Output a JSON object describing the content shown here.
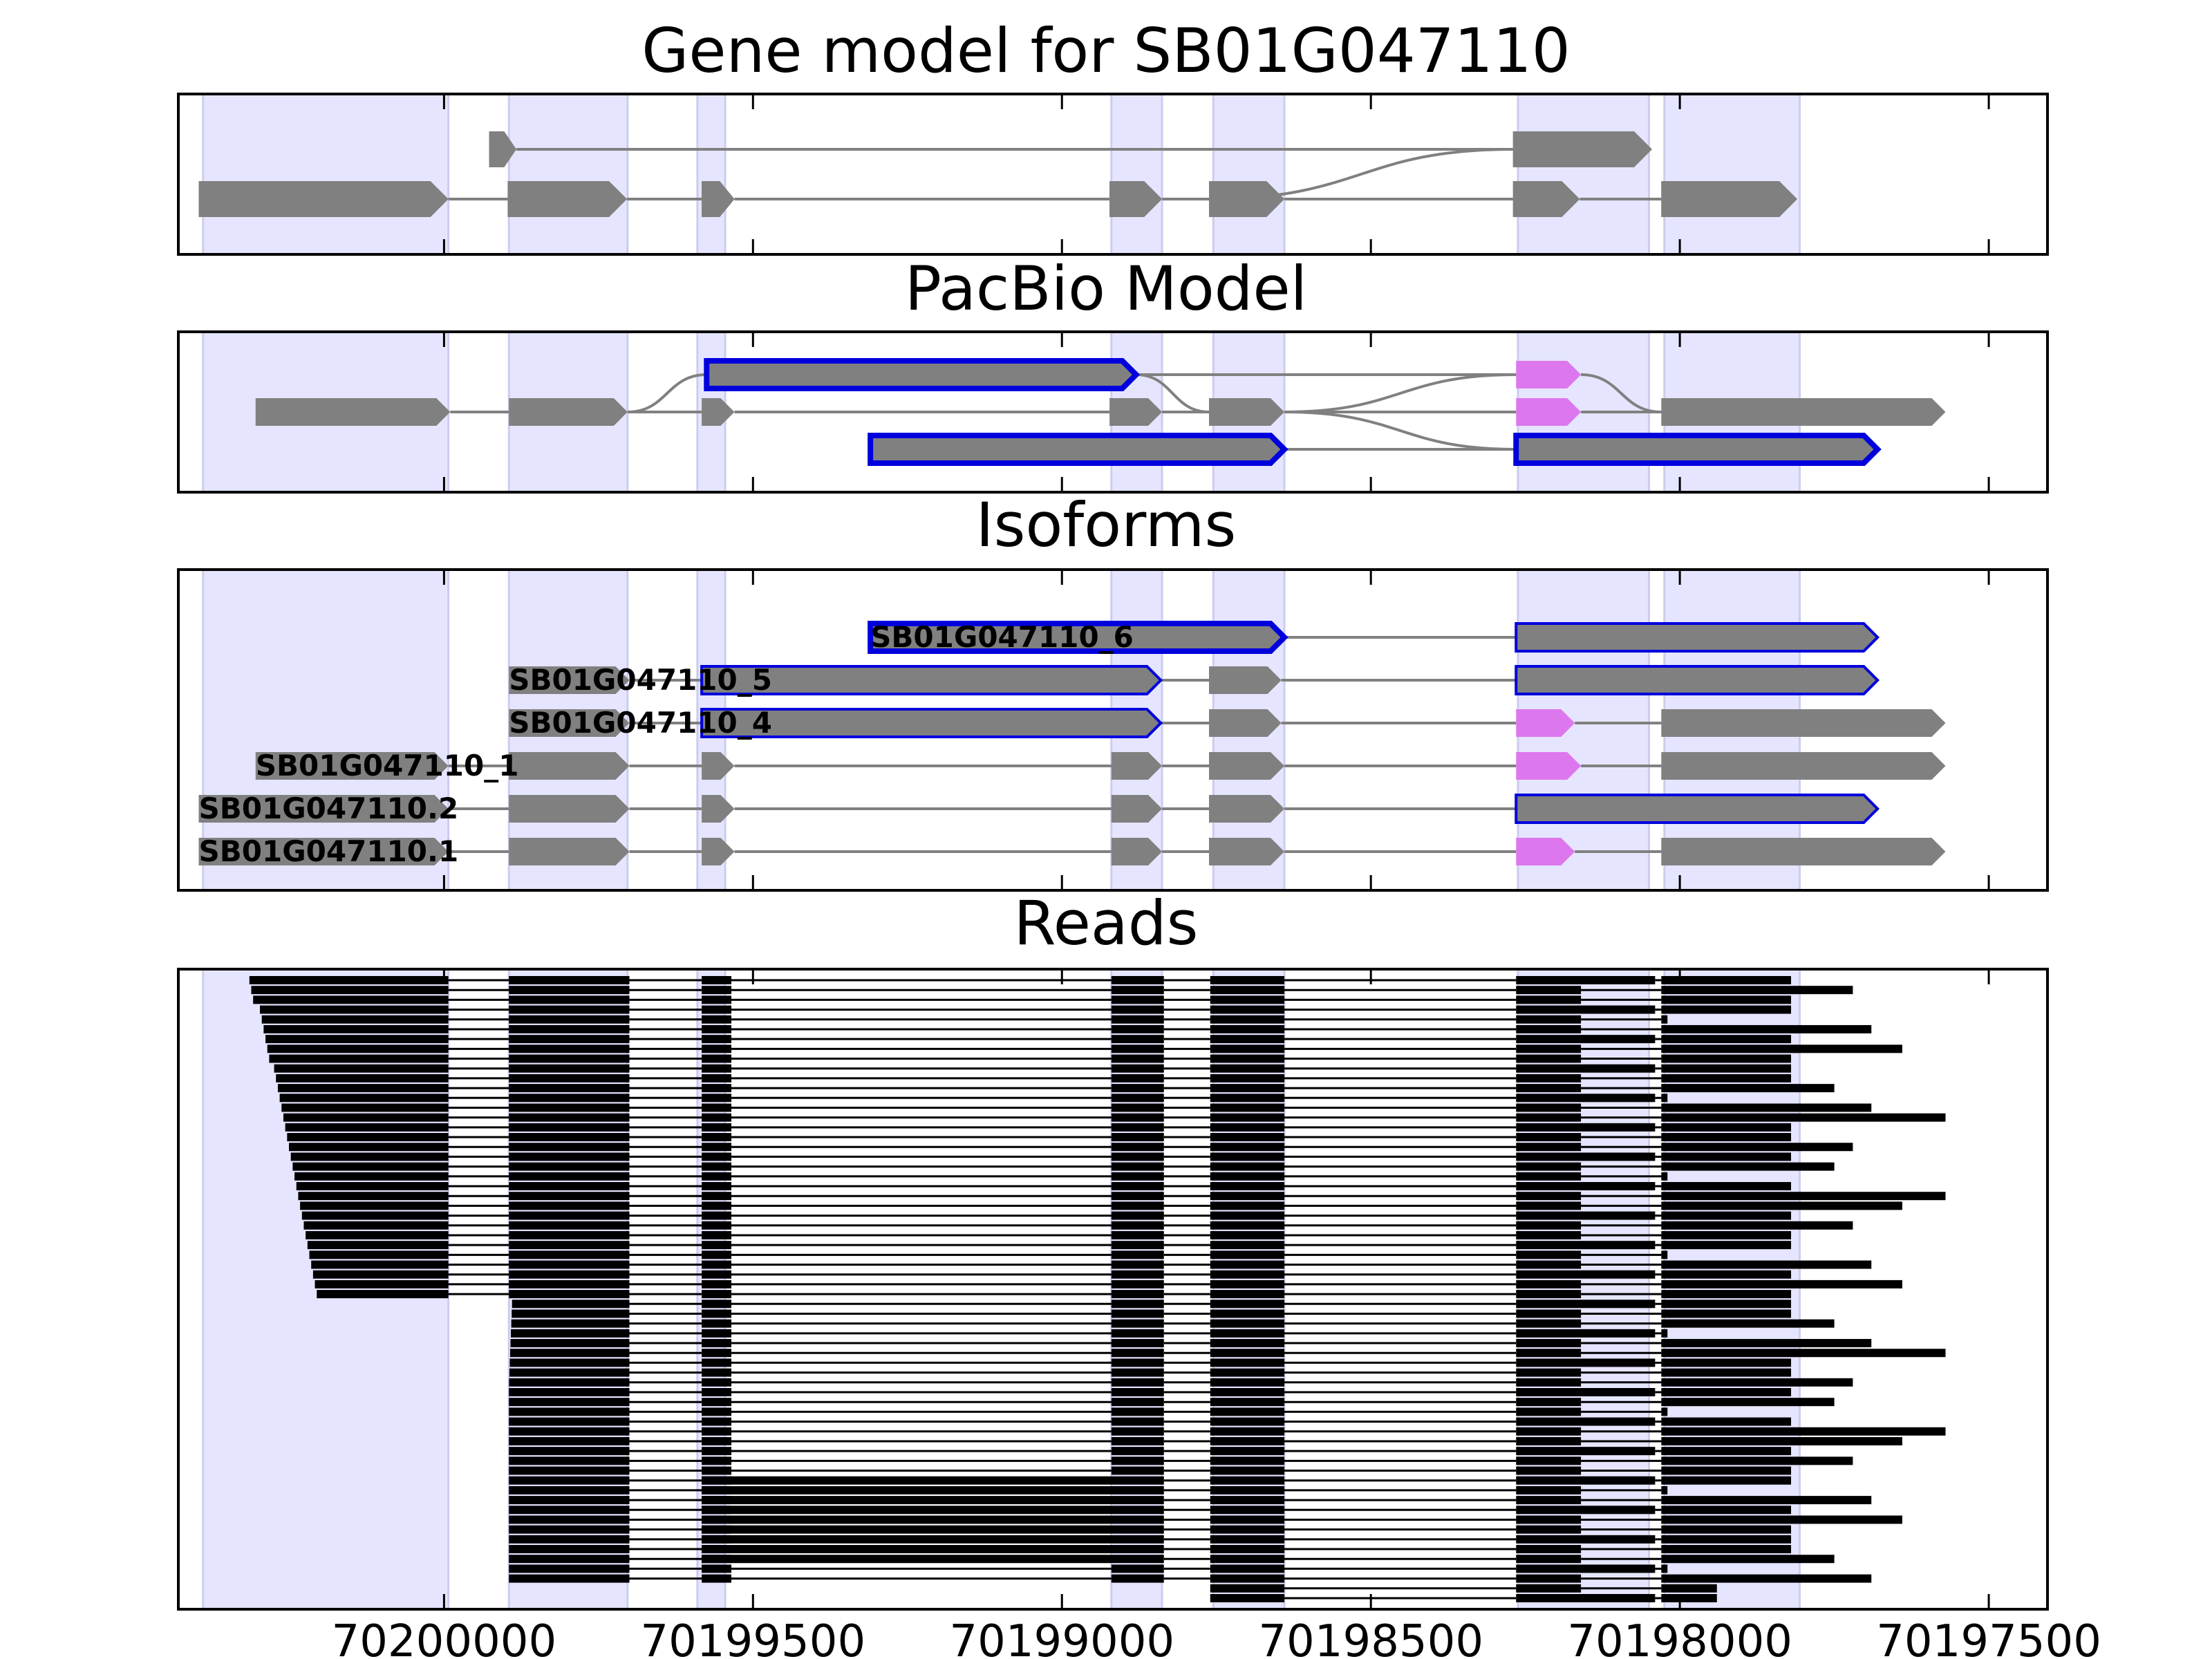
{
  "panels": {
    "gene": {
      "title": "Gene model for SB01G047110",
      "rows": [
        {
          "exons": [
            {
              "s": 70199927,
              "e": 70199883,
              "k": "n"
            },
            {
              "s": 70198270,
              "e": 70198045,
              "k": "n"
            }
          ],
          "introns": [
            [
              70198762,
              70198270,
              "curve"
            ]
          ]
        },
        {
          "exons": [
            {
              "s": 70200397,
              "e": 70199993,
              "k": "n"
            },
            {
              "s": 70199897,
              "e": 70199704,
              "k": "n"
            },
            {
              "s": 70199583,
              "e": 70199530,
              "k": "n"
            },
            {
              "s": 70198923,
              "e": 70198838,
              "k": "n"
            },
            {
              "s": 70198762,
              "e": 70198640,
              "k": "n"
            },
            {
              "s": 70198270,
              "e": 70198162,
              "k": "n"
            },
            {
              "s": 70198030,
              "e": 70197810,
              "k": "n"
            }
          ]
        }
      ]
    },
    "pacbio": {
      "title": "PacBio Model",
      "rows": [
        {
          "exons": [
            {
              "s": 70199575,
              "e": 70198880,
              "k": "h"
            },
            {
              "s": 70198265,
              "e": 70198160,
              "k": "p"
            }
          ]
        },
        {
          "exons": [
            {
              "s": 70200305,
              "e": 70199990,
              "k": "n"
            },
            {
              "s": 70199895,
              "e": 70199703,
              "k": "n"
            },
            {
              "s": 70199583,
              "e": 70199530,
              "k": "n"
            },
            {
              "s": 70198923,
              "e": 70198838,
              "k": "n"
            },
            {
              "s": 70198762,
              "e": 70198640,
              "k": "n"
            },
            {
              "s": 70198265,
              "e": 70198160,
              "k": "p"
            },
            {
              "s": 70198030,
              "e": 70197570,
              "k": "n"
            }
          ]
        },
        {
          "exons": [
            {
              "s": 70199310,
              "e": 70198640,
              "k": "h"
            },
            {
              "s": 70198265,
              "e": 70197680,
              "k": "h"
            }
          ]
        }
      ],
      "extra_introns": [
        [
          70199703,
          70199575,
          "up",
          1,
          0
        ],
        [
          70198880,
          70198762,
          "down",
          0,
          1
        ],
        [
          70198640,
          70198265,
          "up",
          1,
          0
        ],
        [
          70198160,
          70198030,
          "down",
          0,
          1
        ],
        [
          70198640,
          70198265,
          "down",
          1,
          2
        ]
      ]
    },
    "isoforms": {
      "title": "Isoforms",
      "rows": [
        {
          "label": "SB01G047110_6",
          "labelAt": 70199310,
          "exons": [
            {
              "s": 70199310,
              "e": 70198640,
              "k": "h"
            },
            {
              "s": 70198265,
              "e": 70197680,
              "k": "hb"
            }
          ]
        },
        {
          "label": "SB01G047110_5",
          "labelAt": 70199895,
          "exons": [
            {
              "s": 70199895,
              "e": 70199700,
              "k": "n"
            },
            {
              "s": 70199583,
              "e": 70198840,
              "k": "hb"
            },
            {
              "s": 70198762,
              "e": 70198645,
              "k": "n"
            },
            {
              "s": 70198265,
              "e": 70197680,
              "k": "hb"
            }
          ]
        },
        {
          "label": "SB01G047110_4",
          "labelAt": 70199895,
          "exons": [
            {
              "s": 70199895,
              "e": 70199700,
              "k": "n"
            },
            {
              "s": 70199583,
              "e": 70198840,
              "k": "hb"
            },
            {
              "s": 70198762,
              "e": 70198645,
              "k": "n"
            },
            {
              "s": 70198265,
              "e": 70198170,
              "k": "p"
            },
            {
              "s": 70198030,
              "e": 70197570,
              "k": "n"
            }
          ]
        },
        {
          "label": "SB01G047110_1",
          "labelAt": 70200305,
          "exons": [
            {
              "s": 70200305,
              "e": 70199993,
              "k": "n"
            },
            {
              "s": 70199895,
              "e": 70199700,
              "k": "n"
            },
            {
              "s": 70199583,
              "e": 70199530,
              "k": "n"
            },
            {
              "s": 70198920,
              "e": 70198838,
              "k": "n"
            },
            {
              "s": 70198762,
              "e": 70198640,
              "k": "n"
            },
            {
              "s": 70198265,
              "e": 70198160,
              "k": "p"
            },
            {
              "s": 70198030,
              "e": 70197570,
              "k": "n"
            }
          ]
        },
        {
          "label": "SB01G047110.2",
          "labelAt": 70200397,
          "exons": [
            {
              "s": 70200397,
              "e": 70199993,
              "k": "n"
            },
            {
              "s": 70199895,
              "e": 70199700,
              "k": "n"
            },
            {
              "s": 70199583,
              "e": 70199530,
              "k": "n"
            },
            {
              "s": 70198920,
              "e": 70198838,
              "k": "n"
            },
            {
              "s": 70198762,
              "e": 70198640,
              "k": "n"
            },
            {
              "s": 70198265,
              "e": 70197680,
              "k": "hb"
            }
          ]
        },
        {
          "label": "SB01G047110.1",
          "labelAt": 70200397,
          "exons": [
            {
              "s": 70200397,
              "e": 70199993,
              "k": "n"
            },
            {
              "s": 70199895,
              "e": 70199700,
              "k": "n"
            },
            {
              "s": 70199583,
              "e": 70199530,
              "k": "n"
            },
            {
              "s": 70198920,
              "e": 70198838,
              "k": "n"
            },
            {
              "s": 70198762,
              "e": 70198640,
              "k": "n"
            },
            {
              "s": 70198265,
              "e": 70198170,
              "k": "p"
            },
            {
              "s": 70198030,
              "e": 70197570,
              "k": "n"
            }
          ]
        }
      ]
    },
    "reads": {
      "title": "Reads"
    }
  },
  "xaxis": {
    "min": 70200430,
    "max": 70197405,
    "ticks": [
      {
        "v": 70200000,
        "label": "70200000"
      },
      {
        "v": 70199500,
        "label": "70199500"
      },
      {
        "v": 70199000,
        "label": "70199000"
      },
      {
        "v": 70198500,
        "label": "70198500"
      },
      {
        "v": 70198000,
        "label": "70198000"
      },
      {
        "v": 70197500,
        "label": "70197500"
      }
    ]
  },
  "exon_regions": [
    [
      70200390,
      70199993
    ],
    [
      70199895,
      70199703
    ],
    [
      70199590,
      70199545
    ],
    [
      70198920,
      70198838
    ],
    [
      70198755,
      70198640
    ],
    [
      70198262,
      70198050
    ],
    [
      70198025,
      70197806
    ]
  ],
  "colors": {
    "shade": "#e5e5ff",
    "shade_edge": "#ccccee",
    "exon": "#808080",
    "intron": "#808080",
    "highlight": "#0000dd",
    "pink": "#dd77ee",
    "read": "#000000"
  },
  "reads": {
    "count": 64,
    "exon1_end": 70199993,
    "exon2": [
      70199895,
      70199700
    ],
    "exon3": [
      70199583,
      70199535
    ],
    "exon4": [
      70198920,
      70198835
    ],
    "exon5": [
      70198760,
      70198640
    ],
    "exon6_start": 70198265
  }
}
